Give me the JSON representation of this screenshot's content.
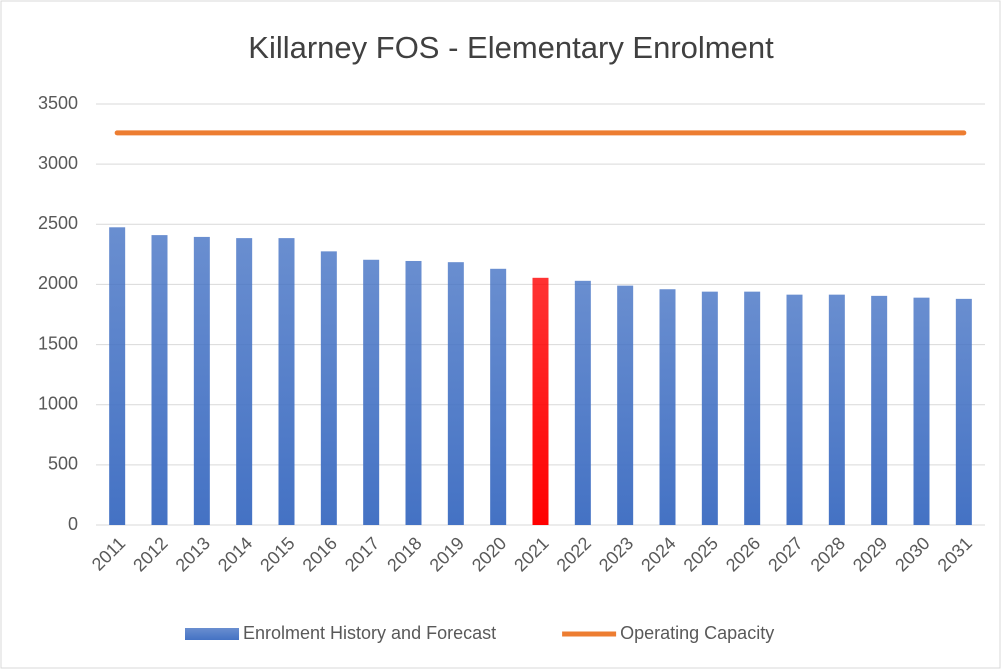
{
  "chart_data": {
    "type": "bar",
    "title": "Killarney FOS - Elementary Enrolment",
    "categories": [
      "2011",
      "2012",
      "2013",
      "2014",
      "2015",
      "2016",
      "2017",
      "2018",
      "2019",
      "2020",
      "2021",
      "2022",
      "2023",
      "2024",
      "2025",
      "2026",
      "2027",
      "2028",
      "2029",
      "2030",
      "2031"
    ],
    "series": [
      {
        "name": "Enrolment History and Forecast",
        "type": "bar",
        "color": "#4472c4",
        "colors": [
          "#4472c4",
          "#4472c4",
          "#4472c4",
          "#4472c4",
          "#4472c4",
          "#4472c4",
          "#4472c4",
          "#4472c4",
          "#4472c4",
          "#4472c4",
          "#ff0000",
          "#4472c4",
          "#4472c4",
          "#4472c4",
          "#4472c4",
          "#4472c4",
          "#4472c4",
          "#4472c4",
          "#4472c4",
          "#4472c4",
          "#4472c4"
        ],
        "values": [
          2475,
          2410,
          2395,
          2385,
          2385,
          2275,
          2205,
          2195,
          2185,
          2130,
          2055,
          2030,
          1990,
          1960,
          1940,
          1940,
          1915,
          1915,
          1905,
          1890,
          1880
        ]
      },
      {
        "name": "Operating Capacity",
        "type": "line",
        "color": "#ed7d31",
        "values": [
          3260,
          3260,
          3260,
          3260,
          3260,
          3260,
          3260,
          3260,
          3260,
          3260,
          3260,
          3260,
          3260,
          3260,
          3260,
          3260,
          3260,
          3260,
          3260,
          3260,
          3260
        ]
      }
    ],
    "ylim": [
      0,
      3500
    ],
    "yticks": [
      0,
      500,
      1000,
      1500,
      2000,
      2500,
      3000,
      3500
    ],
    "grid": true,
    "legend": "bottom"
  }
}
